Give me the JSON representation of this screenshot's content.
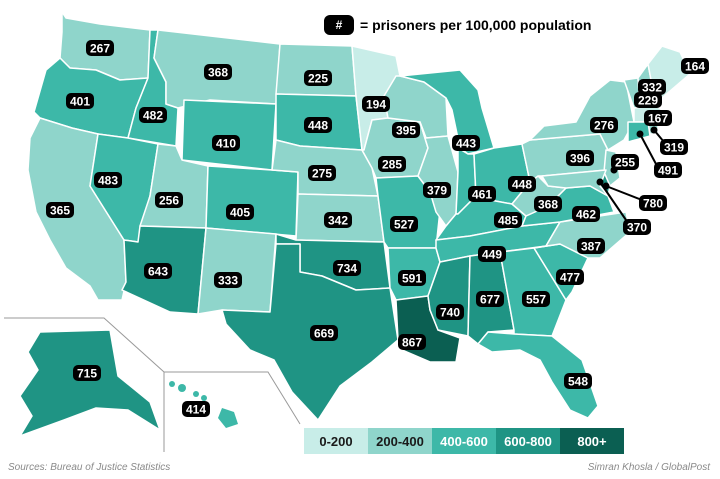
{
  "title_key": {
    "symbol": "#",
    "text": "= prisoners per 100,000 population"
  },
  "colors": {
    "0-200": "#c8ede8",
    "200-400": "#8fd5cb",
    "400-600": "#3db8a8",
    "600-800": "#1f9484",
    "800+": "#0b5f52",
    "border": "#ffffff",
    "label_bg": "#000000",
    "label_text": "#ffffff"
  },
  "scale": [
    {
      "label": "0-200",
      "color_key": "0-200",
      "text_color": "#1a1a1a"
    },
    {
      "label": "200-400",
      "color_key": "200-400",
      "text_color": "#1a1a1a"
    },
    {
      "label": "400-600",
      "color_key": "400-600",
      "text_color": "#ffffff"
    },
    {
      "label": "600-800",
      "color_key": "600-800",
      "text_color": "#ffffff"
    },
    {
      "label": "800+",
      "color_key": "800+",
      "text_color": "#ffffff"
    }
  ],
  "states": [
    {
      "id": "WA",
      "value": 267
    },
    {
      "id": "OR",
      "value": 401
    },
    {
      "id": "CA",
      "value": 365
    },
    {
      "id": "ID",
      "value": 482
    },
    {
      "id": "NV",
      "value": 483
    },
    {
      "id": "MT",
      "value": 368
    },
    {
      "id": "WY",
      "value": 410
    },
    {
      "id": "UT",
      "value": 256
    },
    {
      "id": "AZ",
      "value": 643
    },
    {
      "id": "CO",
      "value": 405
    },
    {
      "id": "NM",
      "value": 333
    },
    {
      "id": "ND",
      "value": 225
    },
    {
      "id": "SD",
      "value": 448
    },
    {
      "id": "NE",
      "value": 275
    },
    {
      "id": "KS",
      "value": 342
    },
    {
      "id": "OK",
      "value": 734
    },
    {
      "id": "TX",
      "value": 669
    },
    {
      "id": "MN",
      "value": 194
    },
    {
      "id": "IA",
      "value": 285
    },
    {
      "id": "MO",
      "value": 527
    },
    {
      "id": "AR",
      "value": 591
    },
    {
      "id": "LA",
      "value": 867
    },
    {
      "id": "WI",
      "value": 395
    },
    {
      "id": "IL",
      "value": 379
    },
    {
      "id": "MI",
      "value": 443
    },
    {
      "id": "IN",
      "value": 461
    },
    {
      "id": "OH",
      "value": 448
    },
    {
      "id": "KY",
      "value": 485
    },
    {
      "id": "TN",
      "value": 449
    },
    {
      "id": "MS",
      "value": 740
    },
    {
      "id": "AL",
      "value": 677
    },
    {
      "id": "GA",
      "value": 557
    },
    {
      "id": "FL",
      "value": 548
    },
    {
      "id": "SC",
      "value": 477
    },
    {
      "id": "NC",
      "value": 387
    },
    {
      "id": "VA",
      "value": 462
    },
    {
      "id": "WV",
      "value": 368
    },
    {
      "id": "PA",
      "value": 396
    },
    {
      "id": "NY",
      "value": 276
    },
    {
      "id": "VT",
      "value": 229
    },
    {
      "id": "NH",
      "value": 332
    },
    {
      "id": "ME",
      "value": 164
    },
    {
      "id": "MA",
      "value": 167
    },
    {
      "id": "RI",
      "value": 319
    },
    {
      "id": "CT",
      "value": 491
    },
    {
      "id": "NJ",
      "value": 255
    },
    {
      "id": "DE",
      "value": 780
    },
    {
      "id": "MD",
      "value": 370
    },
    {
      "id": "AK",
      "value": 715
    },
    {
      "id": "HI",
      "value": 414
    }
  ],
  "footer": {
    "source": "Sources: Bureau of Justice Statistics",
    "credit": "Simran Khosla / GlobalPost"
  }
}
